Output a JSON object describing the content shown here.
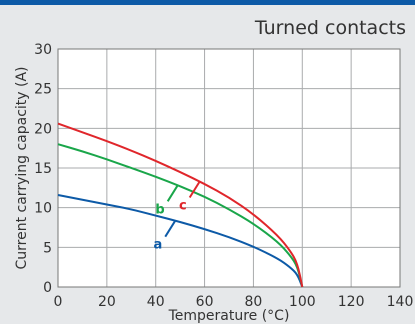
{
  "chart_data": {
    "type": "line",
    "title": "Turned contacts",
    "xlabel": "Temperature (°C)",
    "ylabel": "Current carrying capacity (A)",
    "xlim": [
      0,
      140
    ],
    "ylim": [
      0,
      30
    ],
    "xticks": [
      0,
      20,
      40,
      60,
      80,
      100,
      120,
      140
    ],
    "yticks": [
      0,
      5,
      10,
      15,
      20,
      25,
      30
    ],
    "grid": true,
    "series": [
      {
        "name": "a",
        "color": "#0d5aa7",
        "x": [
          0,
          10,
          20,
          30,
          40,
          50,
          60,
          70,
          80,
          90,
          95,
          98,
          100
        ],
        "y": [
          11.6,
          11.0,
          10.4,
          9.8,
          9.0,
          8.2,
          7.3,
          6.3,
          5.1,
          3.6,
          2.5,
          1.6,
          0
        ]
      },
      {
        "name": "b",
        "color": "#1aa64a",
        "x": [
          0,
          10,
          20,
          30,
          40,
          50,
          60,
          70,
          80,
          90,
          95,
          98,
          100
        ],
        "y": [
          18.0,
          17.1,
          16.1,
          15.0,
          13.9,
          12.7,
          11.4,
          9.8,
          8.0,
          5.7,
          4.0,
          2.6,
          0
        ]
      },
      {
        "name": "c",
        "color": "#e0262b",
        "x": [
          0,
          10,
          20,
          30,
          40,
          50,
          60,
          70,
          80,
          90,
          95,
          98,
          100
        ],
        "y": [
          20.6,
          19.5,
          18.4,
          17.2,
          15.9,
          14.5,
          13.0,
          11.3,
          9.2,
          6.5,
          4.6,
          3.0,
          0
        ]
      }
    ]
  }
}
